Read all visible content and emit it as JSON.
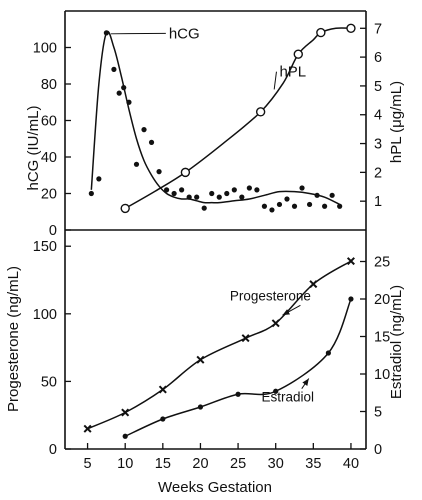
{
  "chart_data": [
    {
      "type": "scatter",
      "title": "",
      "xlabel": "Weeks Gestation",
      "ylabel": "hCG (IU/mL)",
      "y2label": "hPL (μg/mL)",
      "xlim": [
        2,
        42
      ],
      "ylim": [
        0,
        120
      ],
      "y2lim": [
        0,
        7.6
      ],
      "x_ticks": [
        5,
        10,
        15,
        20,
        25,
        30,
        35,
        40
      ],
      "y_ticks": [
        0,
        20,
        40,
        60,
        80,
        100
      ],
      "y2_ticks": [
        1,
        2,
        3,
        4,
        5,
        6,
        7
      ],
      "grid": false,
      "legend": "none",
      "series": [
        {
          "name": "hCG",
          "axis": "left",
          "marker": "dot",
          "x": [
            5.5,
            6.5,
            7.5,
            8.5,
            9.2,
            9.8,
            10.5,
            11.5,
            12.5,
            13.5,
            14.5,
            15.5,
            16.5,
            17.5,
            18.5,
            19.5,
            20.5,
            21.5,
            22.5,
            23.5,
            24.5,
            25.5,
            26.5,
            27.5,
            28.5,
            29.5,
            30.5,
            31.5,
            32.5,
            33.5,
            34.5,
            35.5,
            36.5,
            37.5,
            38.5
          ],
          "y": [
            20,
            28,
            108,
            88,
            75,
            78,
            70,
            36,
            55,
            48,
            32,
            22,
            20,
            22,
            18,
            18,
            12,
            20,
            18,
            20,
            22,
            18,
            23,
            22,
            13,
            11,
            14,
            17,
            13,
            23,
            14,
            19,
            13,
            19,
            13
          ]
        },
        {
          "name": "hPL",
          "axis": "right",
          "marker": "open-circle",
          "x": [
            10,
            18,
            28,
            33,
            36,
            40
          ],
          "y": [
            0.75,
            2,
            4.1,
            6.1,
            6.85,
            7
          ]
        }
      ],
      "curves": [
        {
          "name": "hCG trend",
          "axis": "left",
          "x": [
            5.5,
            6.5,
            7.5,
            8.5,
            9.5,
            10.5,
            11.5,
            12.5,
            13.5,
            14.5,
            15.5,
            16.5,
            17.5,
            18.5,
            19.5,
            20.5,
            21.5,
            22.5,
            24.5,
            26.5,
            28.5,
            30.5,
            32.5,
            34.5,
            36.5,
            38.5
          ],
          "y": [
            22,
            80,
            108,
            100,
            84,
            66,
            50,
            38,
            30,
            24,
            20,
            18,
            17,
            17,
            16,
            15,
            15,
            15,
            16,
            17,
            19,
            21,
            21,
            20,
            18,
            14
          ]
        },
        {
          "name": "hPL trend",
          "axis": "right",
          "x": [
            10,
            14,
            18,
            23,
            28,
            31,
            33,
            35,
            36,
            38,
            40
          ],
          "y": [
            0.75,
            1.35,
            2,
            3,
            4.1,
            5.1,
            6.1,
            6.6,
            6.85,
            7,
            7
          ]
        }
      ],
      "annotations": [
        {
          "text": "hCG",
          "x": 15.8,
          "y": 105
        },
        {
          "text": "hPL",
          "x": 30.5,
          "y": 84
        }
      ]
    },
    {
      "type": "line",
      "title": "",
      "xlabel": "Weeks Gestation",
      "ylabel": "Progesterone (ng/mL)",
      "y2label": "Estradiol (ng/mL)",
      "xlim": [
        2,
        42
      ],
      "ylim": [
        0,
        162
      ],
      "y2lim": [
        0,
        29.2
      ],
      "x_ticks": [
        5,
        10,
        15,
        20,
        25,
        30,
        35,
        40
      ],
      "y_ticks": [
        0,
        50,
        100,
        150
      ],
      "y2_ticks": [
        0,
        5,
        10,
        15,
        20,
        25
      ],
      "grid": false,
      "legend": "none",
      "series": [
        {
          "name": "Progesterone",
          "axis": "left",
          "marker": "x",
          "x": [
            5,
            10,
            15,
            20,
            26,
            30,
            35,
            40
          ],
          "y": [
            15,
            27,
            44,
            66,
            82,
            93,
            122,
            139
          ]
        },
        {
          "name": "Estradiol",
          "axis": "right",
          "marker": "dot",
          "x": [
            10,
            15,
            20,
            25,
            30,
            37,
            40
          ],
          "y": [
            1.7,
            4.0,
            5.6,
            7.3,
            7.7,
            12.8,
            20.0
          ]
        }
      ],
      "annotations": [
        {
          "text": "Progesterone",
          "x": 29.3,
          "y": 110
        },
        {
          "text": "Estradiol",
          "x": 31.6,
          "y": 35
        }
      ]
    }
  ]
}
